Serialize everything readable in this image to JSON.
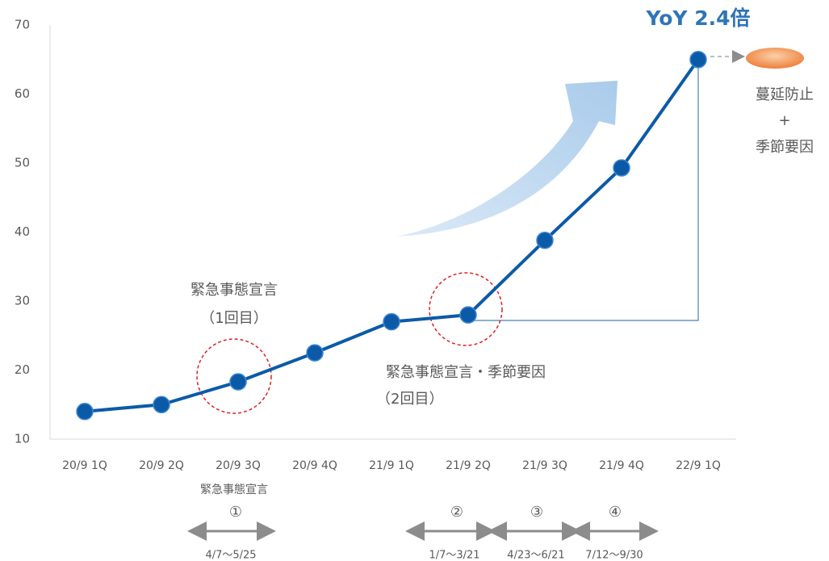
{
  "chart_data": {
    "type": "line",
    "categories": [
      "20/9 1Q",
      "20/9 2Q",
      "20/9 3Q",
      "20/9 4Q",
      "21/9 1Q",
      "21/9 2Q",
      "21/9 3Q",
      "21/9 4Q",
      "22/9 1Q"
    ],
    "values": [
      14,
      15,
      18.3,
      22.5,
      27,
      28,
      38.8,
      49.3,
      65
    ],
    "color": "#0b5aa8",
    "ylim": [
      10,
      70
    ],
    "yticks": [
      10,
      20,
      30,
      40,
      50,
      60,
      70
    ],
    "annotations": [
      "YoY 2.4倍",
      "蔓延防止",
      "+",
      "季節要因",
      "緊急事態宣言",
      "（1回目）",
      "緊急事態宣言・季節要因",
      "（2回目）",
      "緊急事態宣言",
      "①",
      "②",
      "③",
      "④",
      "4/7〜5/25",
      "1/7〜3/21",
      "4/23〜6/21",
      "7/12〜9/30"
    ]
  }
}
